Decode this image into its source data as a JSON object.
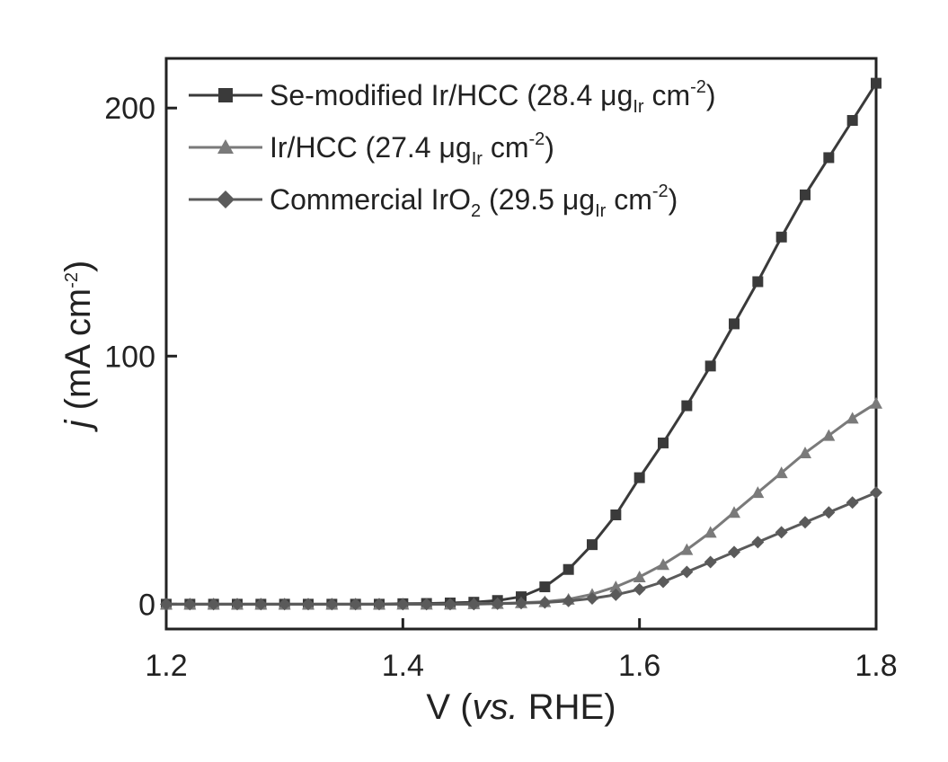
{
  "chart_data": {
    "type": "line",
    "xlabel": {
      "pre": "V (",
      "italic": "vs.",
      "post": " RHE)"
    },
    "ylabel": {
      "italic": "j",
      "pre": " (mA cm",
      "sup": "-2",
      "post": ")"
    },
    "xlim": [
      1.2,
      1.8
    ],
    "ylim": [
      -10,
      220
    ],
    "xticks": [
      "1.2",
      "1.4",
      "1.6",
      "1.8"
    ],
    "yticks": [
      "0",
      "100",
      "200"
    ],
    "legend_position": "top-left",
    "grid": false,
    "series": [
      {
        "name": "Se-modified Ir/HCC (28.4 μg_Ir cm^-2)",
        "legend": {
          "main": "Se-modified Ir/HCC (28.4 μg",
          "sub": "Ir",
          "mid": " cm",
          "sup": "-2",
          "end": ")"
        },
        "marker": "square",
        "color": "#3a3a3a",
        "x": [
          1.2,
          1.22,
          1.24,
          1.26,
          1.28,
          1.3,
          1.32,
          1.34,
          1.36,
          1.38,
          1.4,
          1.42,
          1.44,
          1.46,
          1.48,
          1.5,
          1.52,
          1.54,
          1.56,
          1.58,
          1.6,
          1.62,
          1.64,
          1.66,
          1.68,
          1.7,
          1.72,
          1.74,
          1.76,
          1.78,
          1.8
        ],
        "y": [
          0,
          0,
          0,
          0,
          0,
          0,
          0,
          0,
          0,
          0,
          0.2,
          0.3,
          0.5,
          0.8,
          1.5,
          3,
          7,
          14,
          24,
          36,
          51,
          65,
          80,
          96,
          113,
          130,
          148,
          165,
          180,
          195,
          210
        ]
      },
      {
        "name": "Ir/HCC (27.4 μg_Ir cm^-2)",
        "legend": {
          "main": "Ir/HCC (27.4 μg",
          "sub": "Ir",
          "mid": " cm",
          "sup": "-2",
          "end": ")"
        },
        "marker": "triangle",
        "color": "#7a7a7a",
        "x": [
          1.2,
          1.22,
          1.24,
          1.26,
          1.28,
          1.3,
          1.32,
          1.34,
          1.36,
          1.38,
          1.4,
          1.42,
          1.44,
          1.46,
          1.48,
          1.5,
          1.52,
          1.54,
          1.56,
          1.58,
          1.6,
          1.62,
          1.64,
          1.66,
          1.68,
          1.7,
          1.72,
          1.74,
          1.76,
          1.78,
          1.8
        ],
        "y": [
          0,
          0,
          0,
          0,
          0,
          0,
          0,
          0,
          0,
          0,
          0,
          0,
          0,
          0.2,
          0.3,
          0.6,
          1,
          2,
          4,
          7,
          11,
          16,
          22,
          29,
          37,
          45,
          53,
          61,
          68,
          75,
          81
        ]
      },
      {
        "name": "Commercial IrO2 (29.5 μg_Ir cm^-2)",
        "legend": {
          "main": "Commercial IrO",
          "sub2": "2",
          "main2": " (29.5 μg",
          "sub": "Ir",
          "mid": " cm",
          "sup": "-2",
          "end": ")"
        },
        "marker": "diamond",
        "color": "#5a5a5a",
        "x": [
          1.2,
          1.22,
          1.24,
          1.26,
          1.28,
          1.3,
          1.32,
          1.34,
          1.36,
          1.38,
          1.4,
          1.42,
          1.44,
          1.46,
          1.48,
          1.5,
          1.52,
          1.54,
          1.56,
          1.58,
          1.6,
          1.62,
          1.64,
          1.66,
          1.68,
          1.7,
          1.72,
          1.74,
          1.76,
          1.78,
          1.8
        ],
        "y": [
          0,
          0,
          0,
          0,
          0,
          0,
          0,
          0,
          0,
          0,
          0,
          0,
          0,
          0,
          0.2,
          0.4,
          0.7,
          1.3,
          2.3,
          3.8,
          6,
          9,
          13,
          17,
          21,
          25,
          29,
          33,
          37,
          41,
          45
        ]
      }
    ]
  }
}
